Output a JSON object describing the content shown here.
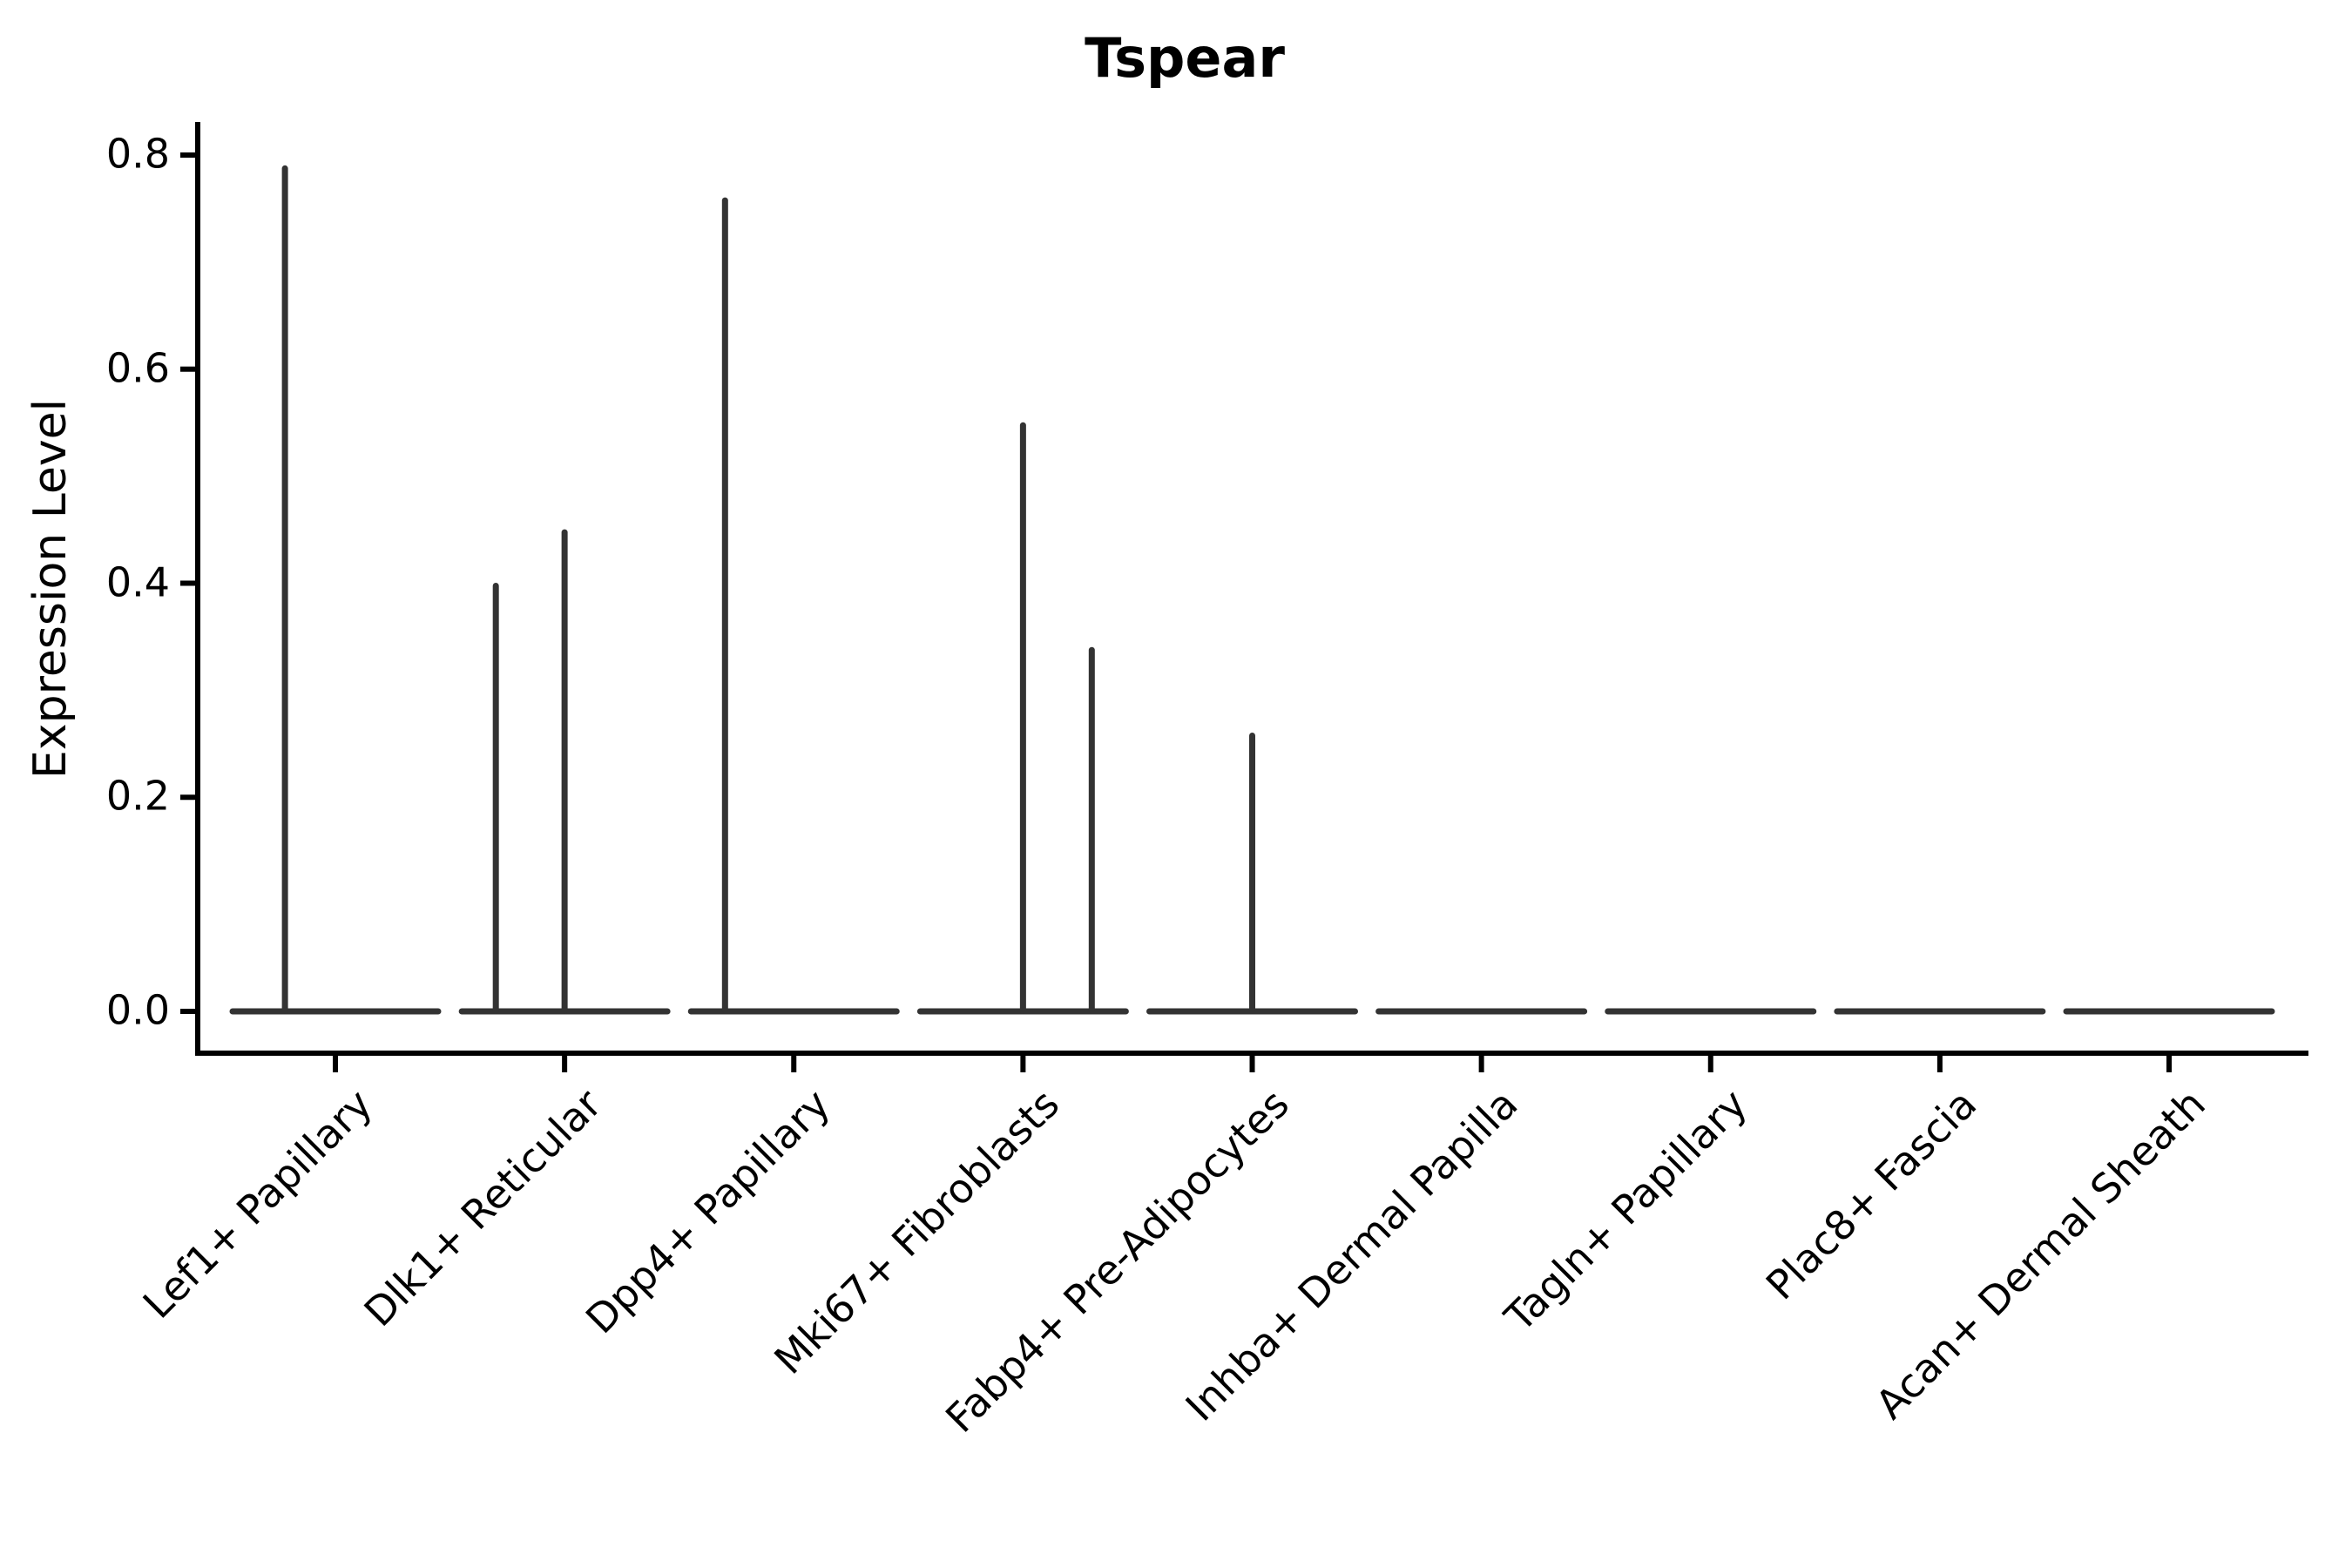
{
  "chart_data": {
    "type": "violin",
    "title": "Tspear",
    "xlabel": "",
    "ylabel": "Expression Level",
    "ylim": [
      -0.04,
      0.83
    ],
    "yticks": [
      0.0,
      0.2,
      0.4,
      0.6,
      0.8
    ],
    "ytick_labels": [
      "0.0",
      "0.2",
      "0.4",
      "0.6",
      "0.8"
    ],
    "grid": false,
    "legend": "none",
    "violin_color": "#333333",
    "axis_color": "#000000",
    "categories": [
      "Lef1+ Papillary",
      "Dlk1+ Reticular",
      "Dpp4+ Papillary",
      "Mki67+ Fibroblasts",
      "Fabp4+ Pre-Adipocytes",
      "Inhba+ Dermal Papilla",
      "Tagln+ Papillary",
      "Plac8+ Fascia",
      "Acan+ Dermal Sheath"
    ],
    "violins": [
      {
        "category": "Lef1+ Papillary",
        "baseline_value": 0.0,
        "spikes": [
          {
            "offset": -0.22,
            "peak": 0.79
          }
        ]
      },
      {
        "category": "Dlk1+ Reticular",
        "baseline_value": 0.0,
        "spikes": [
          {
            "offset": -0.3,
            "peak": 0.4
          },
          {
            "offset": 0.0,
            "peak": 0.45
          }
        ]
      },
      {
        "category": "Dpp4+ Papillary",
        "baseline_value": 0.0,
        "spikes": [
          {
            "offset": -0.3,
            "peak": 0.76
          }
        ]
      },
      {
        "category": "Mki67+ Fibroblasts",
        "baseline_value": 0.0,
        "spikes": [
          {
            "offset": 0.0,
            "peak": 0.55
          },
          {
            "offset": 0.3,
            "peak": 0.34
          }
        ]
      },
      {
        "category": "Fabp4+ Pre-Adipocytes",
        "baseline_value": 0.0,
        "spikes": [
          {
            "offset": 0.0,
            "peak": 0.26
          }
        ]
      },
      {
        "category": "Inhba+ Dermal Papilla",
        "baseline_value": 0.0,
        "spikes": []
      },
      {
        "category": "Tagln+ Papillary",
        "baseline_value": 0.0,
        "spikes": []
      },
      {
        "category": "Plac8+ Fascia",
        "baseline_value": 0.0,
        "spikes": []
      },
      {
        "category": "Acan+ Dermal Sheath",
        "baseline_value": 0.0,
        "spikes": []
      }
    ]
  }
}
